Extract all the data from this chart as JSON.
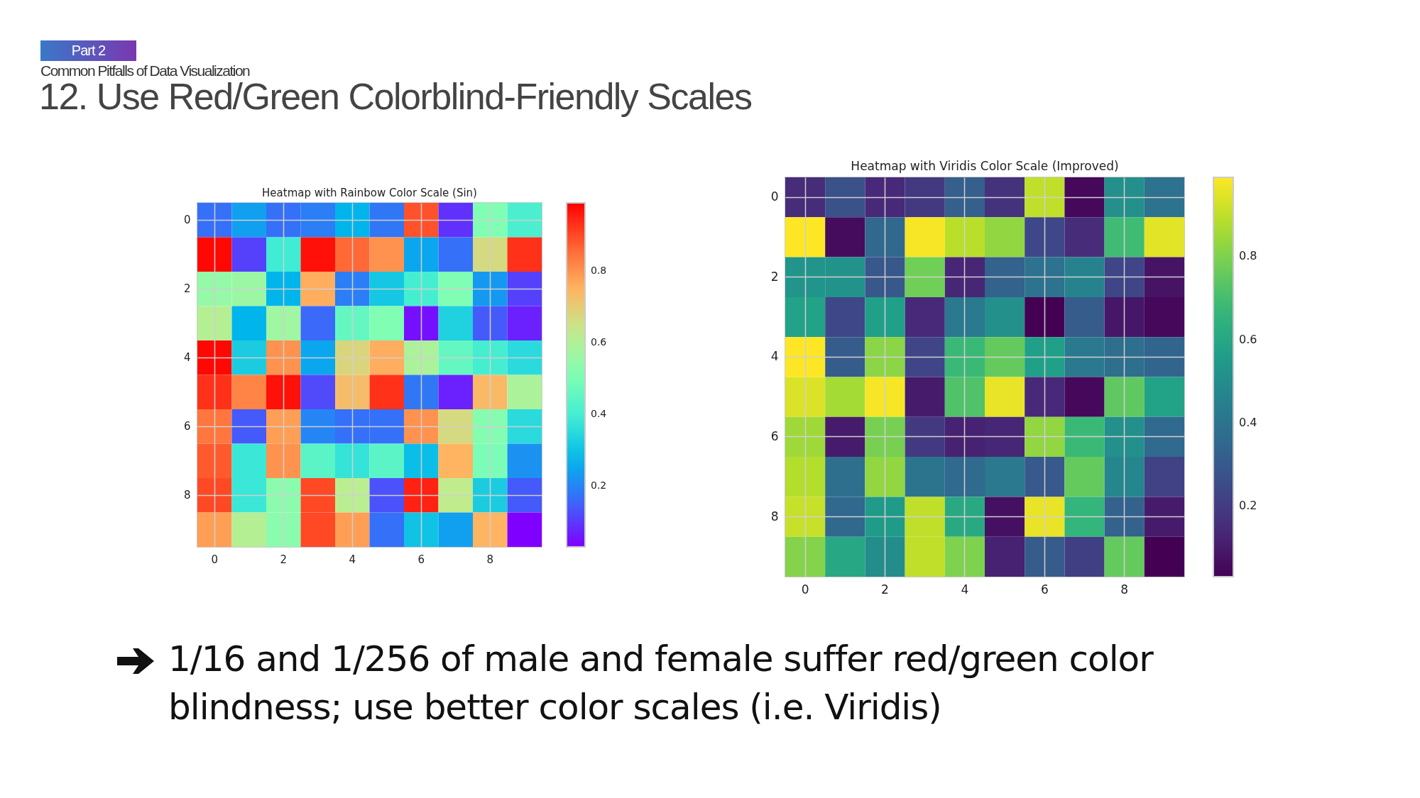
{
  "chart_data": [
    {
      "type": "other",
      "title": "12. Use Red/Green Colorblind-Friendly Scales",
      "subtitle": "Common Pitfalls of Data Visualization",
      "annotations": [
        "Part 2",
        "1/16 and 1/256 of male and female suffer red/green color blindness; use better color scales (i.e. Viridis)"
      ]
    },
    {
      "type": "heatmap",
      "title": "Heatmap with Rainbow Color Scale (Sin)",
      "categories": [
        "0",
        null,
        "2",
        null,
        "4",
        null,
        "6",
        null,
        "8",
        null
      ],
      "y_categories": [
        "0",
        null,
        "2",
        null,
        "4",
        null,
        "6",
        null,
        "8",
        null
      ],
      "cells": [
        [
          0.17,
          0.24,
          0.17,
          0.19,
          0.27,
          0.18,
          0.89,
          0.09,
          0.51,
          0.41
        ],
        [
          0.98,
          0.11,
          0.39,
          0.97,
          0.86,
          0.8,
          0.25,
          0.17,
          0.67,
          0.93
        ],
        [
          0.55,
          0.56,
          0.27,
          0.76,
          0.19,
          0.31,
          0.4,
          0.51,
          0.23,
          0.11
        ],
        [
          0.61,
          0.27,
          0.57,
          0.16,
          0.46,
          0.51,
          0.05,
          0.33,
          0.14,
          0.07
        ],
        [
          0.98,
          0.32,
          0.8,
          0.25,
          0.68,
          0.76,
          0.59,
          0.46,
          0.4,
          0.35
        ],
        [
          0.93,
          0.82,
          0.97,
          0.12,
          0.73,
          0.93,
          0.18,
          0.07,
          0.74,
          0.59
        ],
        [
          0.84,
          0.14,
          0.78,
          0.2,
          0.17,
          0.17,
          0.8,
          0.67,
          0.52,
          0.35
        ],
        [
          0.88,
          0.38,
          0.8,
          0.44,
          0.37,
          0.44,
          0.29,
          0.75,
          0.5,
          0.22
        ],
        [
          0.9,
          0.38,
          0.53,
          0.9,
          0.62,
          0.13,
          0.95,
          0.63,
          0.32,
          0.14
        ],
        [
          0.78,
          0.61,
          0.53,
          0.9,
          0.78,
          0.17,
          0.3,
          0.24,
          0.75,
          0.03
        ]
      ],
      "colors": [
        "#8000ff",
        "#4062fa",
        "#00b5eb",
        "#40ecd4",
        "#80ffb4",
        "#c0ec8e",
        "#ffb462",
        "#ff6232",
        "#ff0000"
      ],
      "clim": [
        0.03,
        0.99
      ],
      "cticks": [
        0.2,
        0.4,
        0.6,
        0.8
      ],
      "grid": true
    },
    {
      "type": "heatmap",
      "title": "Heatmap with Viridis Color Scale (Improved)",
      "categories": [
        "0",
        null,
        "2",
        null,
        "4",
        null,
        "6",
        null,
        "8",
        null
      ],
      "y_categories": [
        "0",
        null,
        "2",
        null,
        "4",
        null,
        "6",
        null,
        "8",
        null
      ],
      "cells": [
        [
          0.15,
          0.27,
          0.14,
          0.19,
          0.32,
          0.17,
          0.9,
          0.05,
          0.51,
          0.39
        ],
        [
          0.99,
          0.06,
          0.35,
          0.98,
          0.89,
          0.83,
          0.24,
          0.15,
          0.69,
          0.95
        ],
        [
          0.53,
          0.52,
          0.29,
          0.78,
          0.13,
          0.33,
          0.39,
          0.46,
          0.23,
          0.08
        ],
        [
          0.58,
          0.24,
          0.57,
          0.14,
          0.42,
          0.51,
          0.03,
          0.31,
          0.09,
          0.05
        ],
        [
          0.99,
          0.31,
          0.82,
          0.23,
          0.68,
          0.76,
          0.57,
          0.42,
          0.38,
          0.34
        ],
        [
          0.94,
          0.86,
          0.98,
          0.1,
          0.72,
          0.96,
          0.14,
          0.05,
          0.75,
          0.58
        ],
        [
          0.85,
          0.1,
          0.79,
          0.19,
          0.12,
          0.13,
          0.83,
          0.68,
          0.51,
          0.36
        ],
        [
          0.88,
          0.38,
          0.83,
          0.4,
          0.36,
          0.42,
          0.3,
          0.76,
          0.47,
          0.22
        ],
        [
          0.91,
          0.35,
          0.55,
          0.9,
          0.61,
          0.07,
          0.96,
          0.66,
          0.33,
          0.1
        ],
        [
          0.81,
          0.6,
          0.5,
          0.9,
          0.8,
          0.12,
          0.31,
          0.21,
          0.76,
          0.03
        ]
      ],
      "colors": [
        "#440154",
        "#482878",
        "#3e4989",
        "#31688e",
        "#26828e",
        "#1f9e89",
        "#35b779",
        "#6ece58",
        "#b5de2b",
        "#fde725"
      ],
      "clim": [
        0.03,
        0.99
      ],
      "cticks": [
        0.2,
        0.4,
        0.6,
        0.8
      ],
      "grid": true
    }
  ]
}
